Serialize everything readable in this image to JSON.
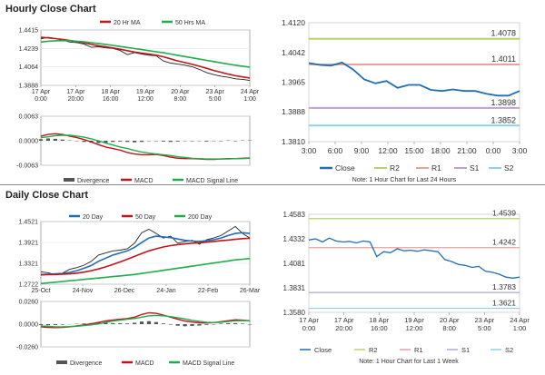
{
  "sections": {
    "hourly_title": "Hourly Close Chart",
    "daily_title": "Daily Close Chart"
  },
  "colors": {
    "price": "#222222",
    "ma_short": "#c0151b",
    "ma_long": "#1fad4b",
    "close_line": "#1f6fb5",
    "r2": "#b5d36b",
    "r1": "#e8a0a0",
    "s1": "#b9a3d3",
    "s2": "#8fd3e6",
    "macd": "#c0151b",
    "signal": "#1fad4b",
    "divergence": "#555555"
  },
  "chart_data": [
    {
      "id": "hourly_price",
      "type": "line",
      "title": "",
      "x_ticks": [
        "17 Apr\n0:00",
        "17 Apr\n20:00",
        "18 Apr\n16:00",
        "19 Apr\n12:00",
        "20 Apr\n8:00",
        "23 Apr\n5:00",
        "24 Apr\n1:00"
      ],
      "y_ticks": [
        "1.4415",
        "1.4239",
        "1.4064",
        "1.3888"
      ],
      "ylim": [
        1.3888,
        1.4415
      ],
      "legend": [
        "20 Hr MA",
        "50 Hrs MA"
      ],
      "legend_position": "top",
      "series": [
        {
          "role": "price",
          "values": [
            1.433,
            1.4345,
            1.4335,
            1.432,
            1.43,
            1.4295,
            1.428,
            1.425,
            1.4255,
            1.4245,
            1.424,
            1.422,
            1.418,
            1.42,
            1.4185,
            1.4175,
            1.417,
            1.412,
            1.41,
            1.409,
            1.408,
            1.4065,
            1.404,
            1.401,
            1.399,
            1.3975,
            1.3965,
            1.395,
            1.3945,
            1.3935
          ]
        },
        {
          "name": "20 Hr MA",
          "values": [
            1.4345,
            1.434,
            1.4333,
            1.4325,
            1.4315,
            1.4305,
            1.4292,
            1.4278,
            1.4265,
            1.4255,
            1.4244,
            1.4232,
            1.4218,
            1.4205,
            1.4195,
            1.4185,
            1.4175,
            1.416,
            1.414,
            1.412,
            1.4105,
            1.4088,
            1.407,
            1.405,
            1.403,
            1.4012,
            1.3995,
            1.398,
            1.3968,
            1.3958
          ]
        },
        {
          "name": "50 Hrs MA",
          "values": [
            1.43,
            1.4308,
            1.4312,
            1.4314,
            1.4312,
            1.4308,
            1.4302,
            1.4294,
            1.4286,
            1.4278,
            1.4268,
            1.4258,
            1.4248,
            1.4238,
            1.4228,
            1.4218,
            1.4208,
            1.4198,
            1.4186,
            1.4174,
            1.4162,
            1.415,
            1.4138,
            1.4126,
            1.4114,
            1.4102,
            1.409,
            1.408,
            1.407,
            1.4062
          ]
        }
      ]
    },
    {
      "id": "hourly_macd",
      "type": "line",
      "y_ticks": [
        "0.0063",
        "0.0000",
        "-0.0063"
      ],
      "ylim": [
        -0.0063,
        0.0063
      ],
      "legend": [
        "Divergence",
        "MACD",
        "MACD Signal Line"
      ],
      "legend_position": "bottom",
      "series": [
        {
          "name": "Divergence",
          "values": [
            0.0004,
            0.0006,
            0.0005,
            0.0003,
            0.0001,
            -0.0001,
            -0.0003,
            -0.0005,
            -0.0006,
            -0.0005,
            -0.0003,
            -0.0002,
            -0.0003,
            -0.0004,
            -0.0003,
            -0.0001,
            0.0,
            -0.0002,
            -0.0003,
            -0.0002,
            -0.0001,
            0.0,
            -0.0001,
            -0.0002,
            -0.0001,
            0.0,
            0.0001,
            0.0,
            0.0001,
            0.0001
          ]
        },
        {
          "name": "MACD",
          "values": [
            0.0012,
            0.0016,
            0.0018,
            0.0016,
            0.0012,
            0.0008,
            0.0003,
            -0.0003,
            -0.001,
            -0.0016,
            -0.002,
            -0.0024,
            -0.003,
            -0.0034,
            -0.0036,
            -0.0036,
            -0.0035,
            -0.0038,
            -0.0042,
            -0.0045,
            -0.0046,
            -0.0046,
            -0.0047,
            -0.0048,
            -0.0048,
            -0.0047,
            -0.0046,
            -0.0046,
            -0.0045,
            -0.0044
          ]
        },
        {
          "name": "MACD Signal Line",
          "values": [
            0.0008,
            0.001,
            0.0013,
            0.0014,
            0.0014,
            0.0012,
            0.0009,
            0.0005,
            0.0,
            -0.0006,
            -0.0011,
            -0.0016,
            -0.002,
            -0.0025,
            -0.0029,
            -0.0032,
            -0.0034,
            -0.0036,
            -0.0038,
            -0.0041,
            -0.0043,
            -0.0045,
            -0.0046,
            -0.0047,
            -0.0047,
            -0.0047,
            -0.0047,
            -0.0046,
            -0.0046,
            -0.0045
          ]
        }
      ]
    },
    {
      "id": "hourly_close",
      "type": "line",
      "x_ticks": [
        "3:00",
        "6:00",
        "9:00",
        "12:00",
        "15:00",
        "18:00",
        "21:00",
        "0:00",
        "3:00"
      ],
      "y_ticks": [
        "1.4120",
        "1.4042",
        "1.3965",
        "1.3888",
        "1.3810"
      ],
      "ylim": [
        1.381,
        1.412
      ],
      "levels": [
        {
          "name": "R2",
          "value": 1.4078,
          "label": "1.4078"
        },
        {
          "name": "R1",
          "value": 1.4011,
          "label": "1.4011"
        },
        {
          "name": "S1",
          "value": 1.3898,
          "label": "1.3898"
        },
        {
          "name": "S2",
          "value": 1.3852,
          "label": "1.3852"
        }
      ],
      "legend": [
        "Close",
        "R2",
        "R1",
        "S1",
        "S2"
      ],
      "legend_position": "bottom",
      "note": "Note: 1 Hour Chart for Last 24 Hours",
      "series": [
        {
          "name": "Close",
          "values": [
            1.4015,
            1.401,
            1.4008,
            1.4016,
            1.3998,
            1.3972,
            1.3962,
            1.3968,
            1.395,
            1.3958,
            1.3958,
            1.3945,
            1.3942,
            1.3946,
            1.3942,
            1.3942,
            1.3935,
            1.393,
            1.393,
            1.3942
          ]
        }
      ]
    },
    {
      "id": "daily_price",
      "type": "line",
      "x_ticks": [
        "25-Oct",
        "24-Nov",
        "26-Dec",
        "24-Jan",
        "22-Feb",
        "26-Mar"
      ],
      "y_ticks": [
        "1.4521",
        "1.3921",
        "1.3321",
        "1.2722"
      ],
      "ylim": [
        1.2722,
        1.4521
      ],
      "legend": [
        "20 Day",
        "50 Day",
        "200 Day"
      ],
      "legend_position": "top",
      "series": [
        {
          "role": "price",
          "values": [
            1.308,
            1.305,
            1.3,
            1.304,
            1.315,
            1.32,
            1.327,
            1.338,
            1.356,
            1.362,
            1.368,
            1.37,
            1.374,
            1.39,
            1.42,
            1.43,
            1.418,
            1.405,
            1.41,
            1.39,
            1.395,
            1.398,
            1.387,
            1.4,
            1.405,
            1.412,
            1.425,
            1.438,
            1.418,
            1.405
          ]
        },
        {
          "name": "20 Day",
          "values": [
            1.3,
            1.301,
            1.302,
            1.303,
            1.306,
            1.311,
            1.318,
            1.326,
            1.338,
            1.347,
            1.356,
            1.362,
            1.368,
            1.378,
            1.392,
            1.405,
            1.41,
            1.408,
            1.406,
            1.402,
            1.398,
            1.396,
            1.395,
            1.397,
            1.4,
            1.405,
            1.412,
            1.418,
            1.42,
            1.418
          ]
        },
        {
          "name": "50 Day",
          "values": [
            1.299,
            1.2995,
            1.3,
            1.301,
            1.302,
            1.304,
            1.307,
            1.311,
            1.316,
            1.322,
            1.329,
            1.336,
            1.344,
            1.352,
            1.36,
            1.368,
            1.374,
            1.379,
            1.383,
            1.386,
            1.388,
            1.39,
            1.391,
            1.393,
            1.395,
            1.397,
            1.399,
            1.401,
            1.403,
            1.404
          ]
        },
        {
          "name": "200 Day",
          "values": [
            1.274,
            1.276,
            1.278,
            1.28,
            1.282,
            1.284,
            1.286,
            1.288,
            1.29,
            1.292,
            1.294,
            1.296,
            1.298,
            1.3,
            1.303,
            1.306,
            1.309,
            1.312,
            1.315,
            1.318,
            1.321,
            1.324,
            1.327,
            1.33,
            1.333,
            1.336,
            1.339,
            1.342,
            1.344,
            1.346
          ]
        }
      ]
    },
    {
      "id": "daily_macd",
      "type": "line",
      "y_ticks": [
        "0.0260",
        "0.0000",
        "-0.0260"
      ],
      "ylim": [
        -0.026,
        0.026
      ],
      "legend": [
        "Divergence",
        "MACD",
        "MACD Signal Line"
      ],
      "legend_position": "bottom",
      "series": [
        {
          "name": "Divergence",
          "values": [
            -0.001,
            -0.0012,
            -0.001,
            -0.0006,
            -0.0002,
            0.0004,
            0.0008,
            0.0012,
            0.0018,
            0.0016,
            0.0012,
            0.001,
            0.0008,
            0.0016,
            0.003,
            0.0034,
            0.0024,
            0.0008,
            -0.0006,
            -0.0018,
            -0.0024,
            -0.002,
            -0.0016,
            -0.0008,
            0.0,
            0.0006,
            0.001,
            0.0012,
            0.0006,
            0.0
          ]
        },
        {
          "name": "MACD",
          "values": [
            -0.003,
            -0.0036,
            -0.004,
            -0.0036,
            -0.003,
            -0.002,
            -0.0008,
            0.0004,
            0.002,
            0.0036,
            0.0048,
            0.0056,
            0.0064,
            0.008,
            0.011,
            0.013,
            0.0124,
            0.0104,
            0.008,
            0.0056,
            0.0036,
            0.0024,
            0.0016,
            0.0014,
            0.0018,
            0.0028,
            0.004,
            0.005,
            0.0046,
            0.004
          ]
        },
        {
          "name": "MACD Signal Line",
          "values": [
            -0.002,
            -0.0024,
            -0.003,
            -0.003,
            -0.0028,
            -0.0024,
            -0.0016,
            -0.0008,
            0.0002,
            0.002,
            0.0036,
            0.0046,
            0.0056,
            0.0064,
            0.008,
            0.0096,
            0.01,
            0.0096,
            0.0086,
            0.0074,
            0.006,
            0.0044,
            0.0032,
            0.0022,
            0.0018,
            0.0022,
            0.003,
            0.0038,
            0.004,
            0.004
          ]
        }
      ]
    },
    {
      "id": "daily_close",
      "type": "line",
      "x_ticks": [
        "17 Apr\n0:00",
        "17 Apr\n20:00",
        "18 Apr\n16:00",
        "19 Apr\n12:00",
        "20 Apr\n8:00",
        "23 Apr\n5:00",
        "24 Apr\n1:00"
      ],
      "y_ticks": [
        "1.4583",
        "1.4332",
        "1.4081",
        "1.3831",
        "1.3580"
      ],
      "ylim": [
        1.358,
        1.4583
      ],
      "levels": [
        {
          "name": "R2",
          "value": 1.4539,
          "label": "1.4539"
        },
        {
          "name": "R1",
          "value": 1.4242,
          "label": "1.4242"
        },
        {
          "name": "S1",
          "value": 1.3783,
          "label": "1.3783"
        },
        {
          "name": "S2",
          "value": 1.3621,
          "label": "1.3621"
        }
      ],
      "legend": [
        "Close",
        "R2",
        "R1",
        "S1",
        "S2"
      ],
      "legend_position": "bottom",
      "note": "Note: 1 Hour Chart for Last 1 Week",
      "series": [
        {
          "name": "Close",
          "values": [
            1.432,
            1.4332,
            1.43,
            1.434,
            1.431,
            1.43,
            1.4305,
            1.429,
            1.431,
            1.43,
            1.415,
            1.42,
            1.419,
            1.423,
            1.421,
            1.4215,
            1.4205,
            1.422,
            1.421,
            1.42,
            1.412,
            1.41,
            1.407,
            1.406,
            1.404,
            1.405,
            1.4,
            1.399,
            1.397,
            1.394,
            1.393,
            1.394
          ]
        }
      ]
    }
  ]
}
